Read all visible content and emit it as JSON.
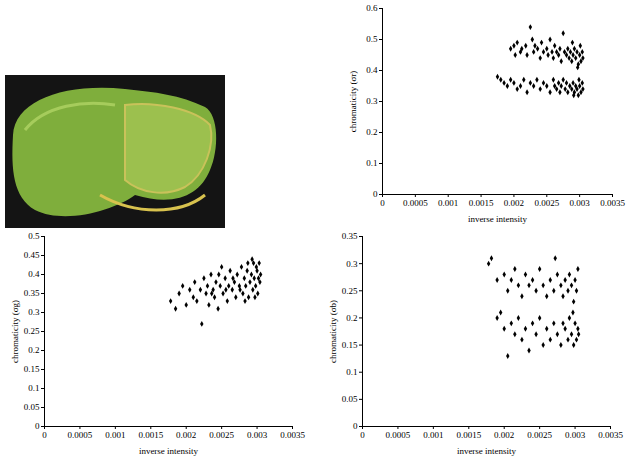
{
  "chart_data": [
    {
      "type": "scatter",
      "xlabel": "inverse intensity",
      "ylabel": "chromaticity (σr)",
      "xlim": [
        0,
        0.0035
      ],
      "xticks": [
        0,
        0.0005,
        0.001,
        0.0015,
        0.002,
        0.0025,
        0.003,
        0.0035
      ],
      "ylim": [
        0,
        0.6
      ],
      "yticks": [
        0,
        0.1,
        0.2,
        0.3,
        0.4,
        0.5,
        0.6
      ],
      "color": "#000000",
      "marker": "diamond",
      "x": [
        0.00195,
        0.002,
        0.00202,
        0.00205,
        0.0021,
        0.00212,
        0.00218,
        0.0022,
        0.00225,
        0.00228,
        0.0023,
        0.00232,
        0.00236,
        0.0024,
        0.00242,
        0.00245,
        0.0025,
        0.00252,
        0.00255,
        0.00258,
        0.0026,
        0.00262,
        0.00265,
        0.00268,
        0.0027,
        0.00272,
        0.00275,
        0.00277,
        0.0028,
        0.00282,
        0.00284,
        0.00286,
        0.00288,
        0.0029,
        0.00292,
        0.00294,
        0.00296,
        0.00298,
        0.003,
        0.00302,
        0.00304,
        0.00305,
        0.00301,
        0.00297,
        0.00289,
        0.00175,
        0.0018,
        0.00185,
        0.0019,
        0.00195,
        0.002,
        0.00205,
        0.0021,
        0.00215,
        0.0022,
        0.00225,
        0.0023,
        0.00235,
        0.0024,
        0.00245,
        0.0025,
        0.00255,
        0.0026,
        0.00262,
        0.00265,
        0.00268,
        0.0027,
        0.00272,
        0.00275,
        0.00278,
        0.0028,
        0.00282,
        0.00285,
        0.00288,
        0.0029,
        0.00292,
        0.00294,
        0.00296,
        0.00298,
        0.003,
        0.00302,
        0.00304,
        0.00305,
        0.00299,
        0.00291
      ],
      "values": [
        0.47,
        0.48,
        0.45,
        0.49,
        0.46,
        0.47,
        0.48,
        0.45,
        0.54,
        0.5,
        0.46,
        0.48,
        0.47,
        0.44,
        0.49,
        0.46,
        0.47,
        0.45,
        0.5,
        0.46,
        0.44,
        0.48,
        0.46,
        0.45,
        0.47,
        0.43,
        0.52,
        0.46,
        0.45,
        0.47,
        0.44,
        0.46,
        0.43,
        0.45,
        0.47,
        0.44,
        0.46,
        0.42,
        0.45,
        0.43,
        0.46,
        0.44,
        0.48,
        0.41,
        0.49,
        0.38,
        0.37,
        0.36,
        0.35,
        0.37,
        0.36,
        0.34,
        0.35,
        0.37,
        0.33,
        0.36,
        0.35,
        0.37,
        0.34,
        0.36,
        0.35,
        0.33,
        0.37,
        0.35,
        0.34,
        0.36,
        0.33,
        0.35,
        0.37,
        0.34,
        0.36,
        0.33,
        0.35,
        0.34,
        0.36,
        0.33,
        0.35,
        0.34,
        0.32,
        0.35,
        0.33,
        0.36,
        0.34,
        0.37,
        0.32
      ]
    },
    {
      "type": "scatter",
      "xlabel": "inverse intensity",
      "ylabel": "chromaticity (σg)",
      "xlim": [
        0,
        0.0035
      ],
      "xticks": [
        0,
        0.0005,
        0.001,
        0.0015,
        0.002,
        0.0025,
        0.003,
        0.0035
      ],
      "ylim": [
        0,
        0.5
      ],
      "yticks": [
        0,
        0.05,
        0.1,
        0.15,
        0.2,
        0.25,
        0.3,
        0.35,
        0.4,
        0.45,
        0.5
      ],
      "color": "#000000",
      "marker": "diamond",
      "x": [
        0.00178,
        0.00185,
        0.0019,
        0.00195,
        0.002,
        0.00205,
        0.0021,
        0.00212,
        0.00215,
        0.0022,
        0.00222,
        0.00225,
        0.00228,
        0.0023,
        0.00232,
        0.00235,
        0.00238,
        0.0024,
        0.00242,
        0.00245,
        0.00248,
        0.0025,
        0.00252,
        0.00255,
        0.00258,
        0.0026,
        0.00262,
        0.00265,
        0.00268,
        0.0027,
        0.00272,
        0.00275,
        0.00278,
        0.0028,
        0.00282,
        0.00284,
        0.00286,
        0.00288,
        0.0029,
        0.00292,
        0.00294,
        0.00295,
        0.00296,
        0.00298,
        0.003,
        0.00301,
        0.00302,
        0.00303,
        0.00304,
        0.00305,
        0.00299,
        0.00297,
        0.00293,
        0.00287,
        0.00283,
        0.00276,
        0.00266,
        0.00256,
        0.00246,
        0.00236
      ],
      "values": [
        0.33,
        0.31,
        0.35,
        0.37,
        0.32,
        0.36,
        0.34,
        0.38,
        0.33,
        0.36,
        0.27,
        0.39,
        0.35,
        0.37,
        0.32,
        0.4,
        0.36,
        0.34,
        0.38,
        0.31,
        0.37,
        0.42,
        0.35,
        0.39,
        0.33,
        0.37,
        0.41,
        0.36,
        0.38,
        0.34,
        0.4,
        0.37,
        0.42,
        0.35,
        0.39,
        0.37,
        0.41,
        0.34,
        0.38,
        0.4,
        0.36,
        0.43,
        0.39,
        0.37,
        0.41,
        0.35,
        0.39,
        0.43,
        0.38,
        0.4,
        0.42,
        0.34,
        0.44,
        0.43,
        0.33,
        0.36,
        0.39,
        0.36,
        0.4,
        0.35
      ]
    },
    {
      "type": "scatter",
      "xlabel": "inverse intensity",
      "ylabel": "chromaticity (σb)",
      "xlim": [
        0,
        0.0035
      ],
      "xticks": [
        0,
        0.0005,
        0.001,
        0.0015,
        0.002,
        0.0025,
        0.003,
        0.0035
      ],
      "ylim": [
        0,
        0.35
      ],
      "yticks": [
        0,
        0.05,
        0.1,
        0.15,
        0.2,
        0.25,
        0.3,
        0.35
      ],
      "color": "#000000",
      "marker": "diamond",
      "x": [
        0.00178,
        0.00182,
        0.0019,
        0.002,
        0.00205,
        0.0021,
        0.00215,
        0.0022,
        0.00225,
        0.0023,
        0.00235,
        0.0024,
        0.00245,
        0.0025,
        0.00255,
        0.0026,
        0.00265,
        0.0027,
        0.00272,
        0.00275,
        0.0028,
        0.00283,
        0.00286,
        0.0029,
        0.00292,
        0.00295,
        0.00298,
        0.003,
        0.00302,
        0.00304,
        0.0019,
        0.00195,
        0.002,
        0.00205,
        0.0021,
        0.00215,
        0.0022,
        0.00225,
        0.0023,
        0.00235,
        0.0024,
        0.00245,
        0.0025,
        0.00255,
        0.0026,
        0.00265,
        0.0027,
        0.00275,
        0.0028,
        0.00283,
        0.00286,
        0.0029,
        0.00292,
        0.00295,
        0.00298,
        0.003,
        0.00302,
        0.00304,
        0.00305,
        0.00297
      ],
      "values": [
        0.3,
        0.31,
        0.27,
        0.28,
        0.25,
        0.27,
        0.29,
        0.26,
        0.24,
        0.28,
        0.26,
        0.27,
        0.25,
        0.29,
        0.26,
        0.24,
        0.27,
        0.25,
        0.31,
        0.28,
        0.26,
        0.24,
        0.27,
        0.25,
        0.28,
        0.26,
        0.23,
        0.27,
        0.25,
        0.29,
        0.2,
        0.21,
        0.18,
        0.13,
        0.19,
        0.17,
        0.2,
        0.16,
        0.18,
        0.14,
        0.19,
        0.17,
        0.2,
        0.15,
        0.18,
        0.16,
        0.19,
        0.17,
        0.15,
        0.19,
        0.18,
        0.16,
        0.2,
        0.17,
        0.15,
        0.19,
        0.16,
        0.18,
        0.17,
        0.21
      ]
    }
  ]
}
